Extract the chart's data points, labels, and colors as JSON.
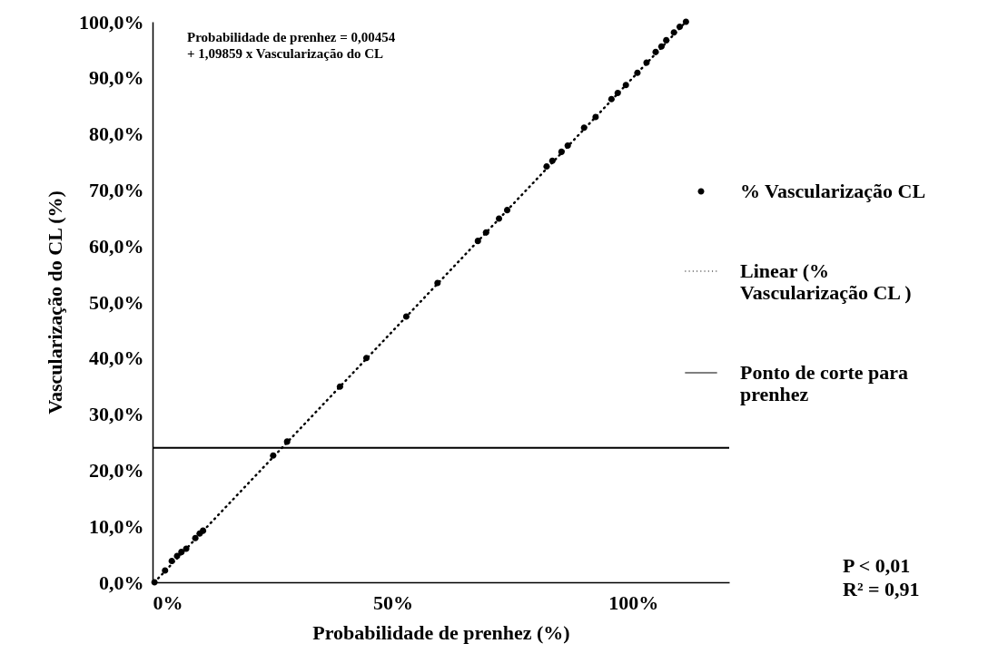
{
  "chart_data": {
    "type": "scatter",
    "xlabel": "Probabilidade de prenhez (%)",
    "ylabel": "Vascularização do CL (%)",
    "xlim": [
      0,
      120
    ],
    "xticks": [
      {
        "value": 0,
        "label": "0%"
      },
      {
        "value": 50,
        "label": "50%"
      },
      {
        "value": 100,
        "label": "100%"
      }
    ],
    "ylim": [
      0,
      100
    ],
    "yticks": [
      {
        "value": 0,
        "label": "0,0%"
      },
      {
        "value": 10,
        "label": "10,0%"
      },
      {
        "value": 20,
        "label": "20,0%"
      },
      {
        "value": 30,
        "label": "30,0%"
      },
      {
        "value": 40,
        "label": "40,0%"
      },
      {
        "value": 50,
        "label": "50,0%"
      },
      {
        "value": 60,
        "label": "60,0%"
      },
      {
        "value": 70,
        "label": "70,0%"
      },
      {
        "value": 80,
        "label": "80,0%"
      },
      {
        "value": 90,
        "label": "90,0%"
      },
      {
        "value": 100,
        "label": "100,0%"
      }
    ],
    "grid": false,
    "legend": "right",
    "series": [
      {
        "name": "% Vascularização CL",
        "marker": "circle",
        "color": "#000000",
        "x": [
          0.4,
          2.6,
          4.0,
          5.1,
          6.0,
          7.0,
          8.9,
          9.8,
          10.5,
          25.1,
          28.0,
          39.0,
          44.5,
          52.8,
          59.3,
          67.7,
          69.4,
          72.1,
          73.8,
          82.0,
          83.2,
          85.1,
          86.4,
          89.8,
          92.2,
          95.5,
          96.8,
          98.5,
          100.9,
          102.8,
          104.7,
          105.9,
          106.9,
          108.5,
          109.7,
          111.0
        ],
        "values": [
          0,
          2.1,
          3.8,
          4.7,
          5.4,
          6.0,
          7.9,
          8.7,
          9.2,
          22.6,
          25.1,
          34.9,
          40.0,
          47.4,
          53.4,
          60.9,
          62.4,
          64.9,
          66.4,
          74.2,
          75.2,
          76.8,
          77.9,
          81.1,
          83.0,
          86.2,
          87.3,
          88.7,
          90.9,
          92.7,
          94.6,
          95.6,
          96.7,
          98.1,
          99.1,
          100
        ]
      },
      {
        "name": "Linear (% Vascularização CL )",
        "type": "line",
        "line_style": "dotted",
        "color": "#000000",
        "x": [
          0.4,
          111.0
        ],
        "values": [
          0,
          100
        ]
      }
    ],
    "ref_lines": [
      {
        "axis": "y",
        "value": 24,
        "label": "Ponto de corte para prenhez",
        "color": "#000000",
        "line_style": "solid"
      }
    ],
    "annotations": [
      "Probabilidade de prenhez = 0,00454\n+ 1,09859 x Vascularização do CL",
      "P < 0,01\nR² = 0,91"
    ]
  }
}
